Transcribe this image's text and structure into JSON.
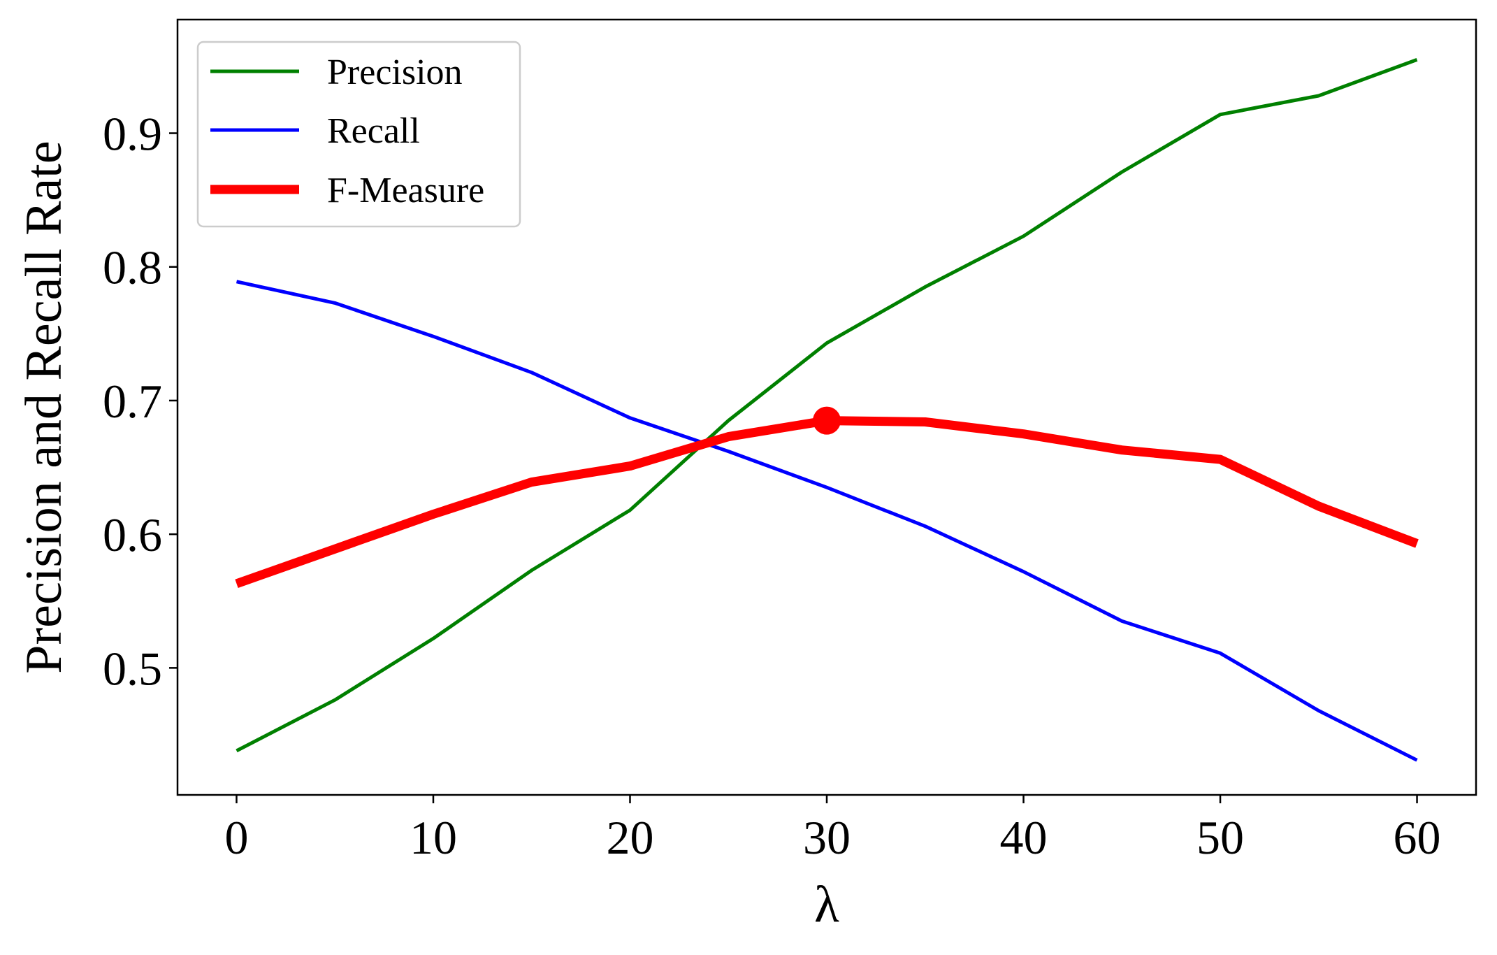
{
  "chart_data": {
    "type": "line",
    "title": "",
    "xlabel": "λ",
    "ylabel": "Precision and Recall Rate",
    "xlim": [
      -3,
      63
    ],
    "ylim": [
      0.405,
      0.985
    ],
    "x": [
      0,
      5,
      10,
      15,
      20,
      25,
      30,
      35,
      40,
      45,
      50,
      55,
      60
    ],
    "xticks": [
      0,
      10,
      20,
      30,
      40,
      50,
      60
    ],
    "xtick_labels": [
      "0",
      "10",
      "20",
      "30",
      "40",
      "50",
      "60"
    ],
    "yticks": [
      0.5,
      0.6,
      0.7,
      0.8,
      0.9
    ],
    "ytick_labels": [
      "0.5",
      "0.6",
      "0.7",
      "0.8",
      "0.9"
    ],
    "grid": false,
    "legend": "top-left",
    "series": [
      {
        "name": "Precision",
        "color": "#008000",
        "values": [
          0.438,
          0.476,
          0.522,
          0.573,
          0.618,
          0.685,
          0.743,
          0.785,
          0.823,
          0.871,
          0.914,
          0.928,
          0.955
        ]
      },
      {
        "name": "Recall",
        "color": "#0000ff",
        "values": [
          0.789,
          0.773,
          0.748,
          0.721,
          0.687,
          0.662,
          0.635,
          0.606,
          0.572,
          0.535,
          0.511,
          0.468,
          0.431
        ]
      },
      {
        "name": "F-Measure",
        "color": "#ff0000",
        "values": [
          0.563,
          0.589,
          0.615,
          0.639,
          0.651,
          0.673,
          0.685,
          0.684,
          0.675,
          0.663,
          0.656,
          0.621,
          0.593
        ]
      }
    ],
    "highlight": {
      "series": "F-Measure",
      "x": 30,
      "y": 0.685,
      "color": "#ff0000"
    }
  }
}
